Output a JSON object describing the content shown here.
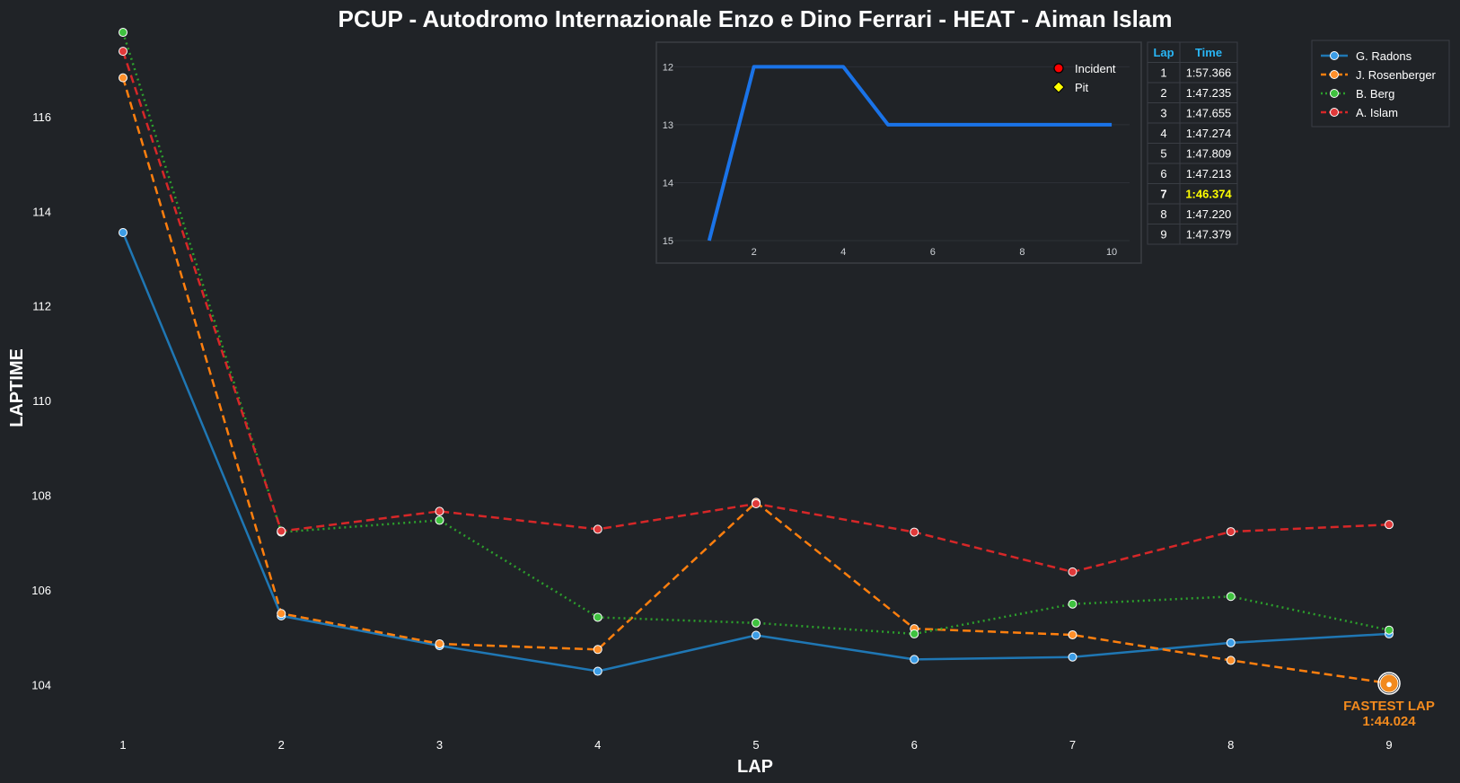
{
  "colors": {
    "background": "#202327",
    "grid": "#2c3036",
    "fastest": "#f28a1e",
    "header_text": "#29b6f6",
    "highlight_text": "#ffff00",
    "position_line": "#1a73e8"
  },
  "chart_data": [
    {
      "type": "line",
      "title": "PCUP - Autodromo Internazionale Enzo e Dino Ferrari - HEAT - Aiman Islam",
      "xlabel": "LAP",
      "ylabel": "LAPTIME",
      "categories": [
        1,
        2,
        3,
        4,
        5,
        6,
        7,
        8,
        9
      ],
      "ylim": [
        103,
        117.8
      ],
      "yticks": [
        104,
        106,
        108,
        110,
        112,
        114,
        116
      ],
      "grid": false,
      "legend_position": "top-right",
      "series": [
        {
          "name": "G. Radons",
          "color": "#1f77b4",
          "marker": "#3c9de6",
          "dash": "solid",
          "values": [
            113.55,
            105.45,
            104.82,
            104.28,
            105.04,
            104.53,
            104.58,
            104.88,
            105.07
          ]
        },
        {
          "name": "J. Rosenberger",
          "color": "#ff7f0e",
          "marker": "#ff8f2a",
          "dash": "dashed",
          "values": [
            116.82,
            105.5,
            104.86,
            104.74,
            107.85,
            105.18,
            105.05,
            104.51,
            104.024
          ]
        },
        {
          "name": "B. Berg",
          "color": "#2ca02c",
          "marker": "#3fc23f",
          "dash": "dotted",
          "values": [
            117.78,
            107.22,
            107.47,
            105.42,
            105.3,
            105.07,
            105.7,
            105.86,
            105.15
          ]
        },
        {
          "name": "A. Islam",
          "color": "#d62728",
          "marker": "#e0393a",
          "dash": "dashed",
          "values": [
            117.38,
            107.24,
            107.66,
            107.28,
            107.82,
            107.22,
            106.38,
            107.23,
            107.38
          ]
        }
      ],
      "annotation": {
        "line1": "FASTEST LAP",
        "line2": "1:44.024",
        "lap": 9,
        "value": 104.024
      }
    },
    {
      "type": "line",
      "title": "",
      "x": [
        1,
        2,
        3,
        4,
        5,
        6,
        7,
        8,
        9,
        10
      ],
      "values": [
        15,
        12,
        12,
        12,
        13,
        13,
        13,
        13,
        13,
        13
      ],
      "xticks": [
        2,
        4,
        6,
        8,
        10
      ],
      "yticks": [
        12,
        13,
        14,
        15
      ],
      "ylim": [
        15,
        11.7
      ],
      "xlim": [
        0.1,
        10.4
      ],
      "y_inverted": true,
      "grid": true,
      "legend": [
        {
          "label": "Incident",
          "color": "#ff0000",
          "shape": "circle"
        },
        {
          "label": "Pit",
          "color": "#ffff00",
          "shape": "diamond"
        }
      ]
    },
    {
      "type": "table",
      "columns": [
        "Lap",
        "Time"
      ],
      "rows": [
        [
          "1",
          "1:57.366"
        ],
        [
          "2",
          "1:47.235"
        ],
        [
          "3",
          "1:47.655"
        ],
        [
          "4",
          "1:47.274"
        ],
        [
          "5",
          "1:47.809"
        ],
        [
          "6",
          "1:47.213"
        ],
        [
          "7",
          "1:46.374"
        ],
        [
          "8",
          "1:47.220"
        ],
        [
          "9",
          "1:47.379"
        ]
      ],
      "highlight_row": 6
    }
  ]
}
